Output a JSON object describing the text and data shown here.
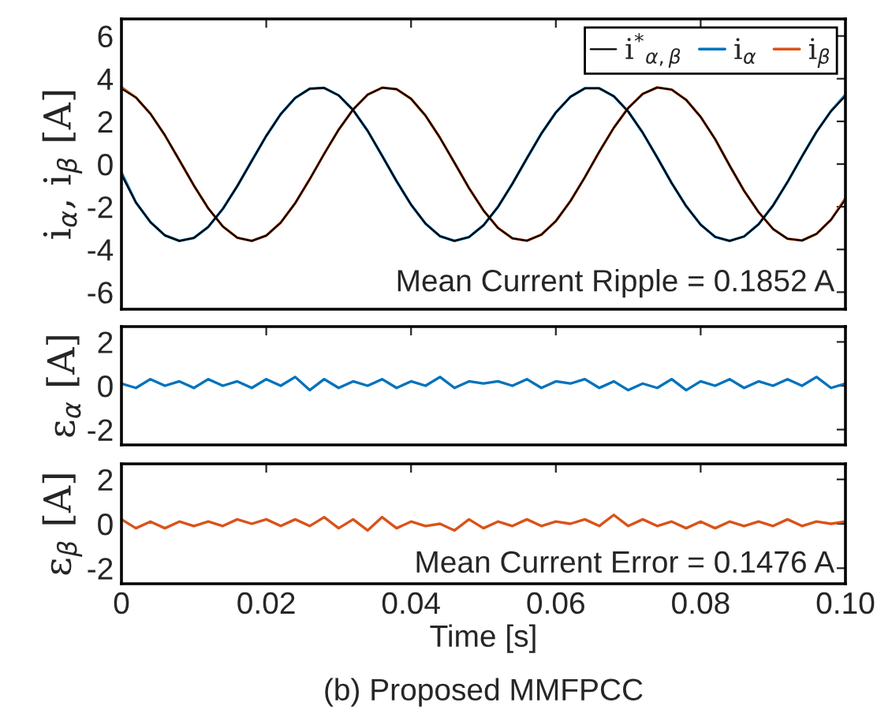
{
  "chart_data": [
    {
      "type": "line",
      "ylabel": "i$_{α}$, i$_{β}$ [A]",
      "xlim": [
        0,
        0.1
      ],
      "xticks": [
        0.02,
        0.04,
        0.06,
        0.08
      ],
      "ylim": [
        -6.8,
        6.8
      ],
      "yticks": [
        -6,
        -4,
        -2,
        0,
        2,
        4,
        6
      ],
      "tick_labels": "y",
      "grid": false,
      "legend": "top right",
      "annotations": [
        "Mean Current Ripple = 0.1852 A"
      ],
      "x": [
        0,
        0.002,
        0.004,
        0.006,
        0.008,
        0.01,
        0.012,
        0.014,
        0.016,
        0.018,
        0.02,
        0.022,
        0.024,
        0.026,
        0.028,
        0.03,
        0.032,
        0.034,
        0.036,
        0.038,
        0.04,
        0.042,
        0.044,
        0.046,
        0.048,
        0.05,
        0.052,
        0.054,
        0.056,
        0.058,
        0.06,
        0.062,
        0.064,
        0.066,
        0.068,
        0.07,
        0.072,
        0.074,
        0.076,
        0.078,
        0.08,
        0.082,
        0.084,
        0.086,
        0.088,
        0.09,
        0.092,
        0.094,
        0.096,
        0.098,
        0.1
      ],
      "series": [
        {
          "name": "i$^{*}$$_{α,β}$",
          "color": "#000000",
          "values": [
            -0.5,
            -1.8,
            -2.72,
            -3.34,
            -3.6,
            -3.46,
            -2.94,
            -2.1,
            -1.03,
            0.15,
            1.32,
            2.34,
            3.1,
            3.53,
            3.57,
            3.22,
            2.53,
            1.56,
            0.39,
            -0.8,
            -1.9,
            -2.79,
            -3.38,
            -3.6,
            -3.42,
            -2.87,
            -2.01,
            -0.92,
            0.27,
            1.43,
            2.42,
            3.15,
            3.55,
            3.55,
            3.18,
            2.46,
            1.47,
            0.31,
            -0.89,
            -1.97,
            -2.84,
            -3.41,
            -3.6,
            -3.39,
            -2.82,
            -1.94,
            -0.84,
            0.36,
            1.51,
            2.48,
            3.19
          ]
        },
        {
          "name": "i$_{α}$",
          "color": "#0072bd",
          "values": [
            -0.4,
            -1.8,
            -2.72,
            -3.34,
            -3.6,
            -3.46,
            -2.94,
            -2.1,
            -1.03,
            0.15,
            1.32,
            2.34,
            3.1,
            3.53,
            3.57,
            3.22,
            2.53,
            1.56,
            0.39,
            -0.8,
            -1.9,
            -2.79,
            -3.38,
            -3.6,
            -3.42,
            -2.87,
            -2.01,
            -0.92,
            0.27,
            1.43,
            2.42,
            3.15,
            3.55,
            3.55,
            3.18,
            2.46,
            1.47,
            0.31,
            -0.89,
            -1.97,
            -2.84,
            -3.41,
            -3.6,
            -3.39,
            -2.82,
            -1.94,
            -0.84,
            0.36,
            1.51,
            2.48,
            3.25
          ]
        },
        {
          "name": "i$_{β}$",
          "color": "#d95319",
          "values": [
            3.6,
            3.12,
            2.36,
            1.35,
            0.18,
            -1.0,
            -2.08,
            -2.92,
            -3.45,
            -3.6,
            -3.35,
            -2.74,
            -1.83,
            -0.71,
            0.48,
            1.61,
            2.56,
            3.25,
            3.58,
            3.51,
            3.06,
            2.27,
            1.23,
            0.06,
            -1.12,
            -2.17,
            -2.99,
            -3.48,
            -3.59,
            -3.31,
            -2.67,
            -1.74,
            -0.62,
            0.58,
            1.7,
            2.63,
            3.29,
            3.59,
            3.49,
            3.01,
            2.21,
            1.17,
            -0.07,
            -1.25,
            -2.25,
            -3.04,
            -3.5,
            -3.58,
            -3.27,
            -2.61,
            -1.6
          ]
        },
        {
          "color": "#000000",
          "values": [
            3.53,
            3.12,
            2.36,
            1.35,
            0.18,
            -1.0,
            -2.08,
            -2.92,
            -3.45,
            -3.6,
            -3.35,
            -2.74,
            -1.83,
            -0.71,
            0.48,
            1.61,
            2.56,
            3.25,
            3.58,
            3.51,
            3.06,
            2.27,
            1.23,
            0.06,
            -1.12,
            -2.17,
            -2.99,
            -3.48,
            -3.59,
            -3.31,
            -2.67,
            -1.74,
            -0.62,
            0.58,
            1.7,
            2.63,
            3.29,
            3.59,
            3.49,
            3.01,
            2.21,
            1.17,
            -0.07,
            -1.25,
            -2.25,
            -3.04,
            -3.5,
            -3.58,
            -3.27,
            -2.61,
            -1.66
          ]
        }
      ]
    },
    {
      "type": "line",
      "ylabel": "ε$_{α}$ [A]",
      "xlim": [
        0,
        0.1
      ],
      "xticks": [
        0.02,
        0.04,
        0.06,
        0.08
      ],
      "ylim": [
        -2.7,
        2.7
      ],
      "yticks": [
        -2,
        0,
        2
      ],
      "tick_labels": "y",
      "grid": false,
      "x": [
        0,
        0.002,
        0.004,
        0.006,
        0.008,
        0.01,
        0.012,
        0.014,
        0.016,
        0.018,
        0.02,
        0.022,
        0.024,
        0.026,
        0.028,
        0.03,
        0.032,
        0.034,
        0.036,
        0.038,
        0.04,
        0.042,
        0.044,
        0.046,
        0.048,
        0.05,
        0.052,
        0.054,
        0.056,
        0.058,
        0.06,
        0.062,
        0.064,
        0.066,
        0.068,
        0.07,
        0.072,
        0.074,
        0.076,
        0.078,
        0.08,
        0.082,
        0.084,
        0.086,
        0.088,
        0.09,
        0.092,
        0.094,
        0.096,
        0.098,
        0.1
      ],
      "series": [
        {
          "color": "#0072bd",
          "values": [
            0.1,
            -0.1,
            0.3,
            0.0,
            0.2,
            -0.1,
            0.3,
            0.0,
            0.2,
            -0.1,
            0.3,
            0.0,
            0.4,
            -0.2,
            0.3,
            -0.1,
            0.2,
            0.0,
            0.3,
            -0.1,
            0.2,
            0.0,
            0.4,
            -0.1,
            0.2,
            0.1,
            0.2,
            0.0,
            0.3,
            -0.1,
            0.2,
            0.1,
            0.3,
            -0.1,
            0.2,
            -0.2,
            0.1,
            -0.1,
            0.3,
            -0.2,
            0.2,
            0.0,
            0.3,
            -0.1,
            0.2,
            0.0,
            0.3,
            0.0,
            0.4,
            -0.1,
            0.1
          ]
        }
      ]
    },
    {
      "type": "line",
      "ylabel": "ε$_{β}$ [A]",
      "xlabel": "Time [s]",
      "xlim": [
        0,
        0.1
      ],
      "xticks": [
        0,
        0.02,
        0.04,
        0.06,
        0.08,
        {
          "value": 0.1,
          "label": "0.10"
        }
      ],
      "ylim": [
        -2.7,
        2.7
      ],
      "yticks": [
        -2,
        0,
        2
      ],
      "grid": false,
      "annotations": [
        "Mean Current Error = 0.1476 A",
        "(b) Proposed MMFPCC"
      ],
      "x": [
        0,
        0.002,
        0.004,
        0.006,
        0.008,
        0.01,
        0.012,
        0.014,
        0.016,
        0.018,
        0.02,
        0.022,
        0.024,
        0.026,
        0.028,
        0.03,
        0.032,
        0.034,
        0.036,
        0.038,
        0.04,
        0.042,
        0.044,
        0.046,
        0.048,
        0.05,
        0.052,
        0.054,
        0.056,
        0.058,
        0.06,
        0.062,
        0.064,
        0.066,
        0.068,
        0.07,
        0.072,
        0.074,
        0.076,
        0.078,
        0.08,
        0.082,
        0.084,
        0.086,
        0.088,
        0.09,
        0.092,
        0.094,
        0.096,
        0.098,
        0.1
      ],
      "series": [
        {
          "color": "#d95319",
          "values": [
            0.2,
            -0.2,
            0.1,
            -0.2,
            0.1,
            -0.1,
            0.1,
            -0.1,
            0.2,
            0.0,
            0.2,
            -0.1,
            0.2,
            -0.1,
            0.3,
            -0.2,
            0.2,
            -0.3,
            0.3,
            -0.2,
            0.1,
            -0.1,
            0.0,
            -0.3,
            0.2,
            -0.2,
            0.1,
            -0.1,
            0.2,
            -0.1,
            0.1,
            0.0,
            0.2,
            -0.1,
            0.4,
            -0.1,
            0.2,
            -0.1,
            0.1,
            -0.2,
            0.1,
            -0.2,
            0.1,
            -0.1,
            0.1,
            -0.1,
            0.2,
            -0.1,
            0.1,
            0.0,
            0.1
          ]
        }
      ]
    }
  ]
}
